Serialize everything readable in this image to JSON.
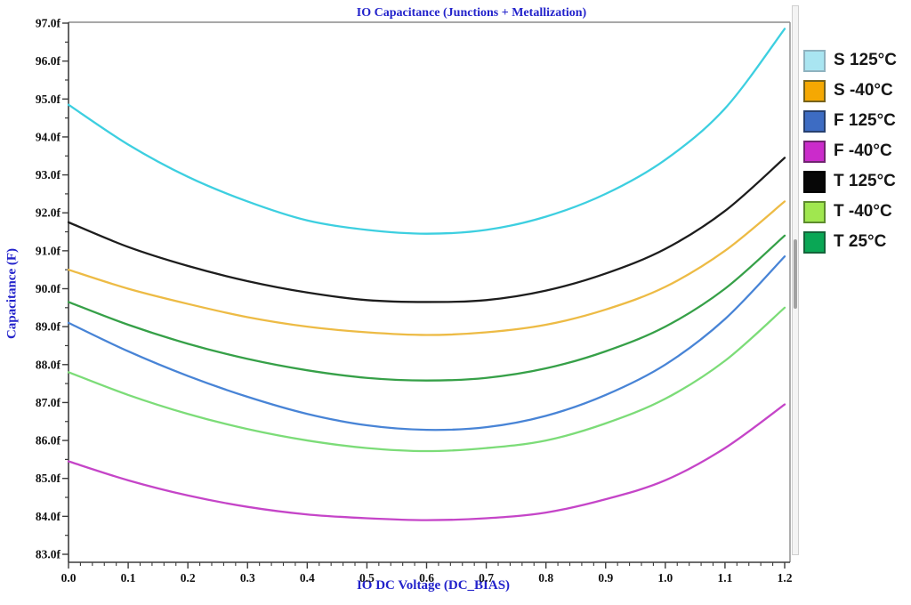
{
  "window": {
    "background": "#ffffff"
  },
  "chart_data": {
    "type": "line",
    "title": "IO Capacitance (Junctions + Metallization)",
    "xlabel": "IO DC Voltage (DC_BIAS)",
    "ylabel": "Capacitance (F)",
    "xlim": [
      0.0,
      1.2
    ],
    "ylim": [
      82.8,
      97.0
    ],
    "grid": false,
    "legend_position": "right",
    "x_tick_values": [
      0.0,
      0.1,
      0.2,
      0.3,
      0.4,
      0.5,
      0.6,
      0.7,
      0.8,
      0.9,
      1.0,
      1.1,
      1.2
    ],
    "x_tick_labels": [
      "0.0",
      "0.1",
      "0.2",
      "0.3",
      "0.4",
      "0.5",
      "0.6",
      "0.7",
      "0.8",
      "0.9",
      "1.0",
      "1.1",
      "1.2"
    ],
    "x_minor_step": 0.02,
    "y_tick_values": [
      83,
      84,
      85,
      86,
      87,
      88,
      89,
      90,
      91,
      92,
      93,
      94,
      95,
      96,
      97
    ],
    "y_tick_labels": [
      "83.0f",
      "84.0f",
      "85.0f",
      "86.0f",
      "87.0f",
      "88.0f",
      "89.0f",
      "90.0f",
      "91.0f",
      "92.0f",
      "93.0f",
      "94.0f",
      "95.0f",
      "96.0f",
      "97.0f"
    ],
    "y_minor_step": 0.5,
    "x": [
      0.0,
      0.1,
      0.2,
      0.3,
      0.4,
      0.5,
      0.6,
      0.7,
      0.8,
      0.9,
      1.0,
      1.1,
      1.2
    ],
    "series": [
      {
        "name": "S 125°C",
        "color": "#3dcfe0",
        "swatch_fill": "#a9e5f1",
        "swatch_border": "#8fb2bf",
        "values": [
          94.85,
          93.8,
          92.95,
          92.3,
          91.8,
          91.55,
          91.45,
          91.55,
          91.9,
          92.5,
          93.4,
          94.75,
          96.85
        ]
      },
      {
        "name": "S -40°C",
        "color": "#edbb45",
        "swatch_fill": "#f5a802",
        "swatch_border": "#77621a",
        "values": [
          90.5,
          90.0,
          89.6,
          89.25,
          89.0,
          88.85,
          88.78,
          88.85,
          89.05,
          89.45,
          90.05,
          91.0,
          92.3
        ]
      },
      {
        "name": "F 125°C",
        "color": "#4884d6",
        "swatch_fill": "#3d6cc3",
        "swatch_border": "#27406f",
        "values": [
          89.1,
          88.35,
          87.7,
          87.15,
          86.7,
          86.4,
          86.28,
          86.35,
          86.65,
          87.2,
          88.0,
          89.2,
          90.85
        ]
      },
      {
        "name": "F -40°C",
        "color": "#c545c8",
        "swatch_fill": "#cb2bcb",
        "swatch_border": "#702470",
        "values": [
          85.45,
          84.95,
          84.55,
          84.25,
          84.05,
          83.95,
          83.9,
          83.95,
          84.1,
          84.45,
          84.95,
          85.8,
          86.95
        ]
      },
      {
        "name": "T 125°C",
        "color": "#1d1d1d",
        "swatch_fill": "#070707",
        "swatch_border": "#000000",
        "values": [
          91.75,
          91.1,
          90.6,
          90.2,
          89.9,
          89.7,
          89.65,
          89.7,
          89.95,
          90.4,
          91.05,
          92.05,
          93.45
        ]
      },
      {
        "name": "T -40°C",
        "color": "#7cdc78",
        "swatch_fill": "#a0e74f",
        "swatch_border": "#5d8b2d",
        "values": [
          87.8,
          87.2,
          86.7,
          86.3,
          86.0,
          85.8,
          85.72,
          85.8,
          86.0,
          86.45,
          87.1,
          88.1,
          89.5
        ]
      },
      {
        "name": "T 25°C",
        "color": "#36a048",
        "swatch_fill": "#0aa755",
        "swatch_border": "#14643a",
        "values": [
          89.65,
          89.05,
          88.55,
          88.15,
          87.85,
          87.65,
          87.58,
          87.65,
          87.9,
          88.35,
          89.0,
          90.0,
          91.4
        ]
      }
    ]
  }
}
